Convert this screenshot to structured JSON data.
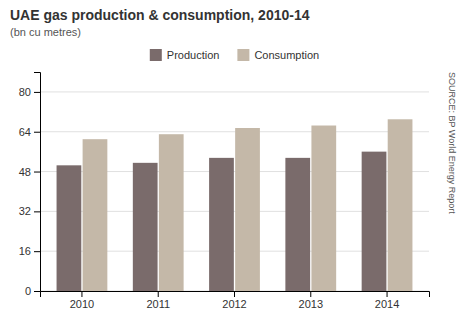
{
  "chart_data": {
    "type": "bar",
    "title": "UAE gas production & consumption, 2010-14",
    "subtitle": "(bn cu metres)",
    "annotations": [
      "SOURCE: BP World Energy Report"
    ],
    "categories": [
      "2010",
      "2011",
      "2012",
      "2013",
      "2014"
    ],
    "series": [
      {
        "name": "Production",
        "color": "#7a6b6b",
        "values": [
          50.5,
          51.5,
          53.5,
          53.5,
          56.0
        ]
      },
      {
        "name": "Consumption",
        "color": "#c4b8a8",
        "values": [
          61.0,
          63.0,
          65.5,
          66.5,
          69.0
        ]
      }
    ],
    "ylim": [
      0,
      88
    ],
    "yticks": [
      0,
      16,
      32,
      48,
      64,
      80
    ],
    "grid": true,
    "legend": "top"
  }
}
